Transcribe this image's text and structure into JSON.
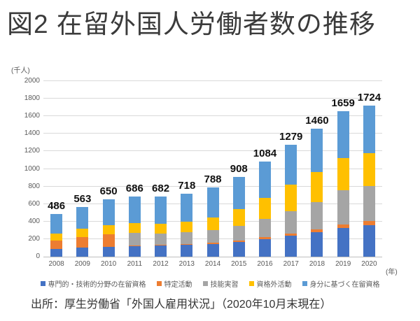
{
  "title": "図2 在留外国人労働者数の推移",
  "source_note": "出所：厚生労働省「外国人雇用状況」（2020年10月末現在）",
  "chart_data": {
    "type": "bar",
    "stacked": true,
    "title": "図2 在留外国人労働者数の推移",
    "y_unit_label": "(千人)",
    "x_unit_label": "(年)",
    "ylim": [
      0,
      2000
    ],
    "ytick_step": 200,
    "grid": true,
    "legend_position": "bottom",
    "categories": [
      "2008",
      "2009",
      "2010",
      "2011",
      "2012",
      "2013",
      "2014",
      "2015",
      "2016",
      "2017",
      "2018",
      "2019",
      "2020"
    ],
    "totals": [
      486,
      563,
      650,
      686,
      682,
      718,
      788,
      908,
      1084,
      1279,
      1460,
      1659,
      1724
    ],
    "series": [
      {
        "name": "専門的・技術的分野の在留資格",
        "color": "#4472C4",
        "values": [
          85,
          100,
          111,
          121,
          124,
          133,
          147,
          167,
          201,
          238,
          277,
          329,
          360
        ]
      },
      {
        "name": "特定活動",
        "color": "#ED7D31",
        "values": [
          97,
          122,
          142,
          9,
          8,
          8,
          9,
          13,
          19,
          26,
          36,
          41,
          46
        ]
      },
      {
        "name": "技能実習",
        "color": "#A5A5A5",
        "values": [
          0,
          0,
          0,
          142,
          134,
          137,
          145,
          168,
          211,
          258,
          308,
          384,
          402
        ]
      },
      {
        "name": "資格外活動",
        "color": "#FFC000",
        "values": [
          80,
          100,
          108,
          110,
          108,
          122,
          147,
          192,
          240,
          297,
          344,
          373,
          370
        ]
      },
      {
        "name": "身分に基づく在留資格",
        "color": "#5B9BD5",
        "values": [
          224,
          241,
          289,
          304,
          308,
          318,
          340,
          368,
          413,
          460,
          495,
          532,
          546
        ]
      }
    ]
  }
}
